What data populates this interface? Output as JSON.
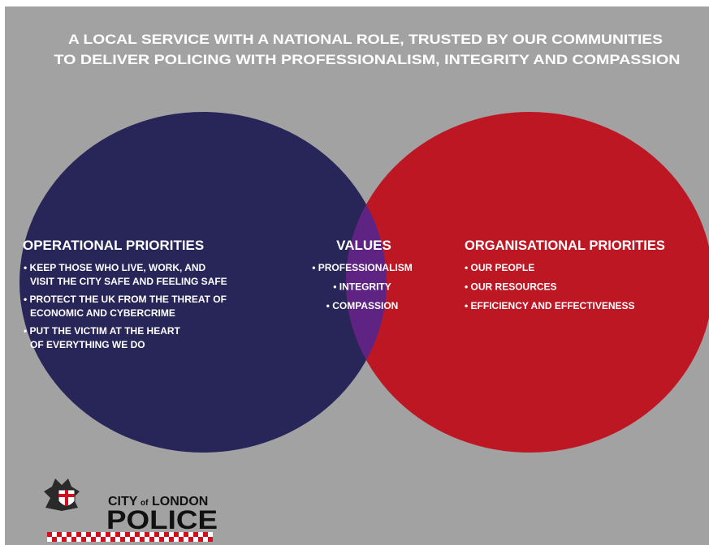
{
  "title": [
    "A LOCAL SERVICE WITH A NATIONAL ROLE, TRUSTED BY OUR COMMUNITIES",
    "TO DELIVER POLICING WITH PROFESSIONALISM, INTEGRITY AND COMPASSION"
  ],
  "left": {
    "heading": "OPERATIONAL PRIORITIES",
    "items": [
      [
        "• KEEP THOSE WHO LIVE, WORK, AND",
        "VISIT THE CITY SAFE AND FEELING SAFE"
      ],
      [
        "• PROTECT THE UK FROM THE THREAT OF",
        "ECONOMIC AND CYBERCRIME"
      ],
      [
        "• PUT THE VICTIM AT THE HEART",
        "OF EVERYTHING WE DO"
      ]
    ]
  },
  "center": {
    "heading": "VALUES",
    "items": [
      "• PROFESSIONALISM",
      "• INTEGRITY",
      "• COMPASSION"
    ]
  },
  "right": {
    "heading": "ORGANISATIONAL PRIORITIES",
    "items": [
      "• OUR PEOPLE",
      "• OUR RESOURCES",
      "• EFFICIENCY AND EFFECTIVENESS"
    ]
  },
  "logo": {
    "city": "CITY",
    "of": "of",
    "london": "LONDON",
    "police": "POLICE"
  }
}
